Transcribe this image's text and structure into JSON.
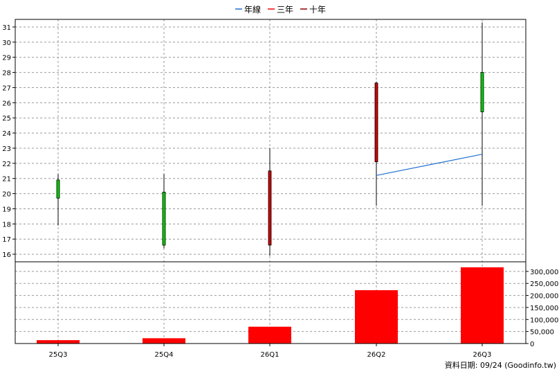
{
  "legend": [
    {
      "label": "年線",
      "color": "#1f6fd0"
    },
    {
      "label": "三年",
      "color": "#ff0000"
    },
    {
      "label": "十年",
      "color": "#8b0000"
    }
  ],
  "footer": "資料日期: 09/24  (Goodinfo.tw)",
  "chart_data": [
    {
      "type": "candlestick",
      "categories": [
        "25Q3",
        "25Q4",
        "26Q1",
        "26Q2",
        "26Q3"
      ],
      "ylim": [
        15.5,
        31.5
      ],
      "yticks": [
        16,
        17,
        18,
        19,
        20,
        21,
        22,
        23,
        24,
        25,
        26,
        27,
        28,
        29,
        30,
        31
      ],
      "grid": true,
      "candles": [
        {
          "open": 19.7,
          "close": 20.9,
          "high": 21.3,
          "low": 17.9
        },
        {
          "open": 16.6,
          "close": 20.1,
          "high": 21.3,
          "low": 16.4
        },
        {
          "open": 21.5,
          "close": 16.6,
          "high": 23.0,
          "low": 15.9
        },
        {
          "open": 27.3,
          "close": 22.1,
          "high": 27.4,
          "low": 19.2
        },
        {
          "open": 25.4,
          "close": 28.0,
          "high": 31.3,
          "low": 19.2
        }
      ],
      "colors": {
        "up": "#00cc00",
        "down": "#cc0000",
        "wick": "#000000"
      },
      "series": [
        {
          "name": "年線",
          "values": [
            null,
            null,
            null,
            21.2,
            22.6
          ],
          "color": "#1f6fd0"
        }
      ]
    },
    {
      "type": "bar",
      "categories": [
        "25Q3",
        "25Q4",
        "26Q1",
        "26Q2",
        "26Q3"
      ],
      "values": [
        14000,
        22000,
        70000,
        222000,
        317000
      ],
      "ylim": [
        0,
        340000
      ],
      "yticks": [
        0,
        50000,
        100000,
        150000,
        200000,
        250000,
        300000
      ],
      "ytick_labels": [
        "0",
        "50,000",
        "100,000",
        "150,000",
        "200,000",
        "250,000",
        "300,000"
      ],
      "color": "#ff0000",
      "grid": true
    }
  ]
}
